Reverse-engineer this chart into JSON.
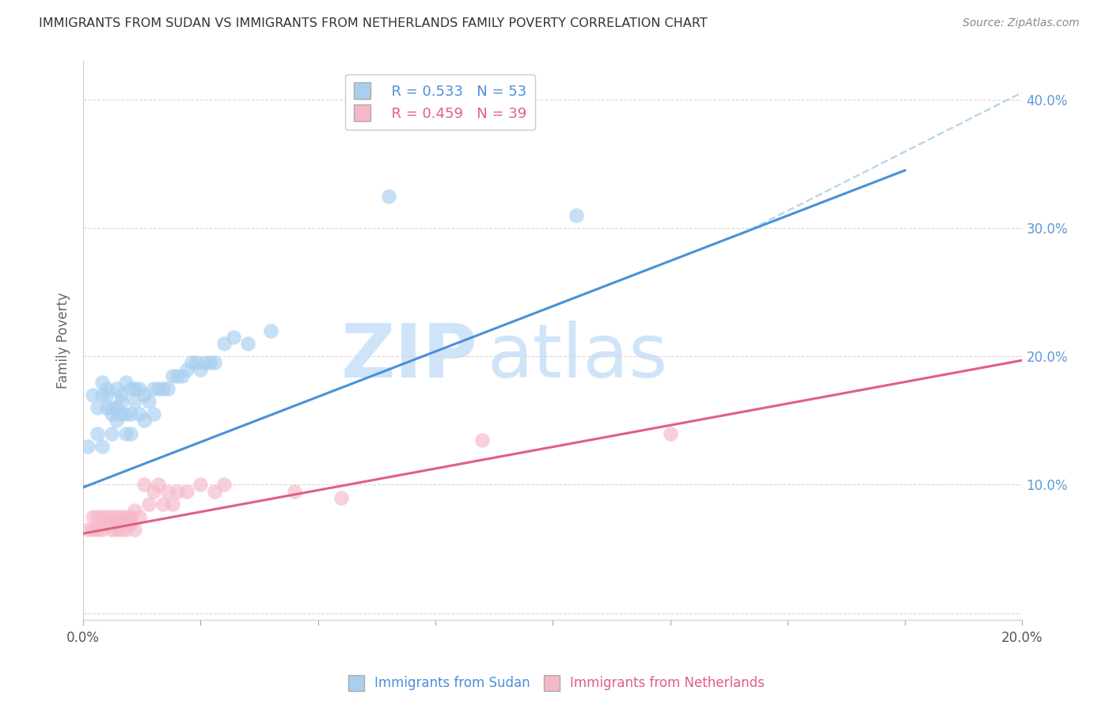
{
  "title": "IMMIGRANTS FROM SUDAN VS IMMIGRANTS FROM NETHERLANDS FAMILY POVERTY CORRELATION CHART",
  "source": "Source: ZipAtlas.com",
  "ylabel_label": "Family Poverty",
  "xlim": [
    0.0,
    0.2
  ],
  "ylim": [
    -0.005,
    0.43
  ],
  "xticks": [
    0.0,
    0.025,
    0.05,
    0.075,
    0.1,
    0.125,
    0.15,
    0.175,
    0.2
  ],
  "xtick_labels_show": [
    "0.0%",
    "",
    "",
    "",
    "",
    "",
    "",
    "",
    "20.0%"
  ],
  "yticks": [
    0.0,
    0.1,
    0.2,
    0.3,
    0.4
  ],
  "sudan_color": "#a8cff0",
  "netherlands_color": "#f5b8c8",
  "sudan_line_color": "#4a90d9",
  "netherlands_line_color": "#e06080",
  "dashed_line_color": "#b8d8f0",
  "grid_color": "#d8d8d8",
  "right_tick_color": "#5b9bd5",
  "legend_r1": "R = 0.533",
  "legend_n1": "N = 53",
  "legend_r2": "R = 0.459",
  "legend_n2": "N = 39",
  "watermark_zip": "ZIP",
  "watermark_atlas": "atlas",
  "sudan_scatter_x": [
    0.001,
    0.002,
    0.003,
    0.003,
    0.004,
    0.004,
    0.004,
    0.005,
    0.005,
    0.005,
    0.006,
    0.006,
    0.006,
    0.007,
    0.007,
    0.007,
    0.008,
    0.008,
    0.008,
    0.009,
    0.009,
    0.009,
    0.01,
    0.01,
    0.01,
    0.011,
    0.011,
    0.012,
    0.012,
    0.013,
    0.013,
    0.014,
    0.015,
    0.015,
    0.016,
    0.017,
    0.018,
    0.019,
    0.02,
    0.021,
    0.022,
    0.023,
    0.024,
    0.025,
    0.026,
    0.027,
    0.028,
    0.03,
    0.032,
    0.035,
    0.04,
    0.065,
    0.105
  ],
  "sudan_scatter_y": [
    0.13,
    0.17,
    0.14,
    0.16,
    0.17,
    0.18,
    0.13,
    0.17,
    0.175,
    0.16,
    0.155,
    0.14,
    0.16,
    0.16,
    0.175,
    0.15,
    0.165,
    0.17,
    0.155,
    0.18,
    0.14,
    0.155,
    0.175,
    0.155,
    0.14,
    0.175,
    0.165,
    0.175,
    0.155,
    0.17,
    0.15,
    0.165,
    0.155,
    0.175,
    0.175,
    0.175,
    0.175,
    0.185,
    0.185,
    0.185,
    0.19,
    0.195,
    0.195,
    0.19,
    0.195,
    0.195,
    0.195,
    0.21,
    0.215,
    0.21,
    0.22,
    0.325,
    0.31
  ],
  "netherlands_scatter_x": [
    0.001,
    0.002,
    0.002,
    0.003,
    0.003,
    0.004,
    0.004,
    0.005,
    0.005,
    0.006,
    0.006,
    0.007,
    0.007,
    0.007,
    0.008,
    0.008,
    0.009,
    0.009,
    0.01,
    0.01,
    0.011,
    0.011,
    0.012,
    0.013,
    0.014,
    0.015,
    0.016,
    0.017,
    0.018,
    0.019,
    0.02,
    0.022,
    0.025,
    0.028,
    0.03,
    0.045,
    0.055,
    0.085,
    0.125
  ],
  "netherlands_scatter_y": [
    0.065,
    0.065,
    0.075,
    0.065,
    0.075,
    0.065,
    0.075,
    0.07,
    0.075,
    0.065,
    0.075,
    0.07,
    0.065,
    0.075,
    0.065,
    0.075,
    0.065,
    0.075,
    0.07,
    0.075,
    0.065,
    0.08,
    0.075,
    0.1,
    0.085,
    0.095,
    0.1,
    0.085,
    0.095,
    0.085,
    0.095,
    0.095,
    0.1,
    0.095,
    0.1,
    0.095,
    0.09,
    0.135,
    0.14
  ],
  "sudan_line_x": [
    0.0,
    0.175
  ],
  "sudan_line_y": [
    0.098,
    0.345
  ],
  "netherlands_line_x": [
    0.0,
    0.2
  ],
  "netherlands_line_y": [
    0.062,
    0.197
  ],
  "dashed_line_x": [
    0.14,
    0.205
  ],
  "dashed_line_y": [
    0.295,
    0.415
  ]
}
